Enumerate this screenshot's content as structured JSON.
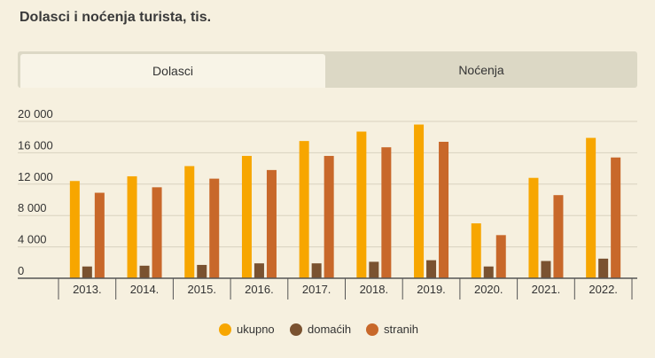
{
  "title": "Dolasci i noćenja turista, tis.",
  "tabs": [
    {
      "label": "Dolasci",
      "active": true
    },
    {
      "label": "Noćenja",
      "active": false
    }
  ],
  "colors": {
    "ukupno": "#f7a600",
    "domacih": "#7a5230",
    "stranih": "#c8682a",
    "grid": "#d9d2bf",
    "axis": "#555555"
  },
  "legend": [
    {
      "label": "ukupno",
      "color": "#f7a600"
    },
    {
      "label": "domaćih",
      "color": "#7a5230"
    },
    {
      "label": "stranih",
      "color": "#c8682a"
    }
  ],
  "chart_data": {
    "type": "bar",
    "categories": [
      "2013.",
      "2014.",
      "2015.",
      "2016.",
      "2017.",
      "2018.",
      "2019.",
      "2020.",
      "2021.",
      "2022."
    ],
    "series": [
      {
        "name": "ukupno",
        "values": [
          12400,
          13000,
          14300,
          15600,
          17500,
          18700,
          19600,
          7000,
          12800,
          17900
        ]
      },
      {
        "name": "domaćih",
        "values": [
          1500,
          1600,
          1700,
          1900,
          1900,
          2100,
          2300,
          1500,
          2200,
          2500
        ]
      },
      {
        "name": "stranih",
        "values": [
          10900,
          11600,
          12700,
          13800,
          15600,
          16700,
          17400,
          5500,
          10600,
          15400
        ]
      }
    ],
    "yticks": [
      "0",
      "4 000",
      "8 000",
      "12 000",
      "16 000",
      "20 000"
    ],
    "ylim": [
      0,
      20000
    ],
    "grid": true,
    "legend_position": "bottom-center"
  }
}
